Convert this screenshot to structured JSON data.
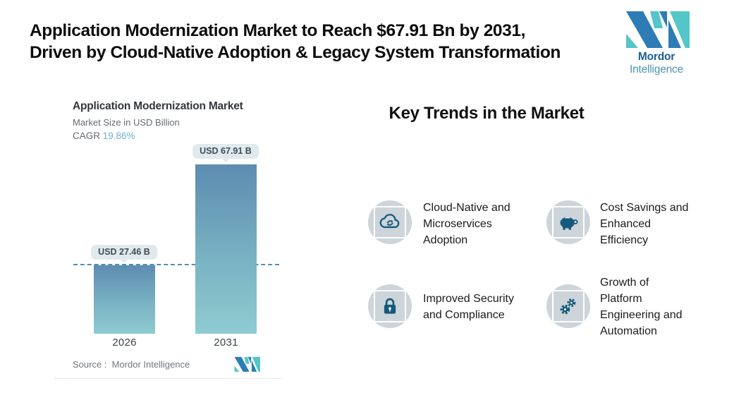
{
  "header": {
    "title_lines": [
      "Application Modernization Market to Reach $67.91 Bn by 2031,",
      "Driven by Cloud-Native Adoption & Legacy System Transformation"
    ],
    "brand": {
      "name_bold": "Mordor",
      "name_light": "Intelligence"
    }
  },
  "chart": {
    "title": "Application Modernization Market",
    "subtitle": "Market Size in USD Billion",
    "cagr_label": "CAGR ",
    "cagr_value": "19.86%",
    "source_line": "Source :  Mordor Intelligence"
  },
  "chart_data": {
    "type": "bar",
    "title": "Application Modernization Market",
    "ylabel": "Market Size in USD Billion",
    "cagr": "19.86%",
    "categories": [
      "2026",
      "2031"
    ],
    "values": [
      27.46,
      67.91
    ],
    "value_labels": [
      "USD 27.46 B",
      "USD 67.91 B"
    ],
    "ylim": [
      0,
      70
    ],
    "reference_line": 27.46,
    "grid": false,
    "legend": "none",
    "bar_gradient": [
      "#5d8cb1",
      "#8fcbd1"
    ],
    "dashed_line_color": "#4f90b5",
    "tooltip_bg": "#e0eaee"
  },
  "trends": {
    "heading": "Key Trends in the Market",
    "colors": {
      "icon_circle_bg": "#cdd5da",
      "icon_color": "#155a7e"
    },
    "items": [
      {
        "icon": "cloud-sync-icon",
        "label_lines": [
          "Cloud-Native and",
          "Microservices",
          "Adoption"
        ]
      },
      {
        "icon": "piggy-bank-icon",
        "label_lines": [
          "Cost Savings and",
          "Enhanced",
          "Efficiency"
        ]
      },
      {
        "icon": "lock-icon",
        "label_lines": [
          "Improved Security",
          "and Compliance"
        ]
      },
      {
        "icon": "gears-icon",
        "label_lines": [
          "Growth of",
          "Platform",
          "Engineering and",
          "Automation"
        ]
      }
    ]
  },
  "logo_colors": {
    "teal": "#54c5c9",
    "blue": "#2d7cb5"
  }
}
